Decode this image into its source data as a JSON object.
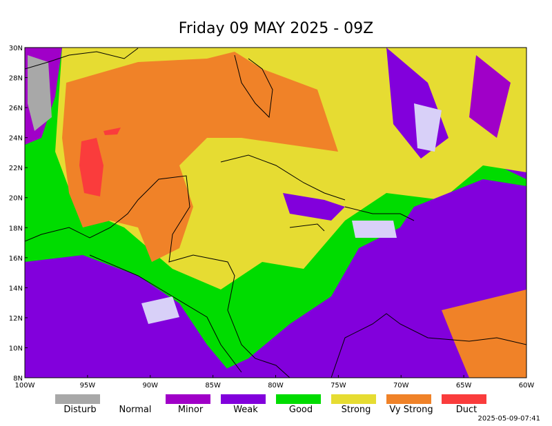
{
  "title": "Friday 09 MAY 2025 - 09Z",
  "lat_labels": [
    "30N",
    "28N",
    "26N",
    "24N",
    "22N",
    "20N",
    "18N",
    "16N",
    "14N",
    "12N",
    "10N",
    "8N"
  ],
  "lon_labels": [
    "100W",
    "95W",
    "90W",
    "85W",
    "80W",
    "75W",
    "70W",
    "65W",
    "60W"
  ],
  "legend": [
    {
      "label": "Disturb",
      "color": "#a8a8a8"
    },
    {
      "label": "Normal"
    },
    {
      "label": "Minor",
      "color": "#a000c8"
    },
    {
      "label": "Weak",
      "color": "#8200dc"
    },
    {
      "label": "Good",
      "color": "#00dc00"
    },
    {
      "label": "Strong",
      "color": "#e6dc32"
    },
    {
      "label": "Vy Strong",
      "color": "#f08228"
    },
    {
      "label": "Duct",
      "color": "#fa3c3c"
    }
  ],
  "timestamp": "2025-05-09-07:41"
}
